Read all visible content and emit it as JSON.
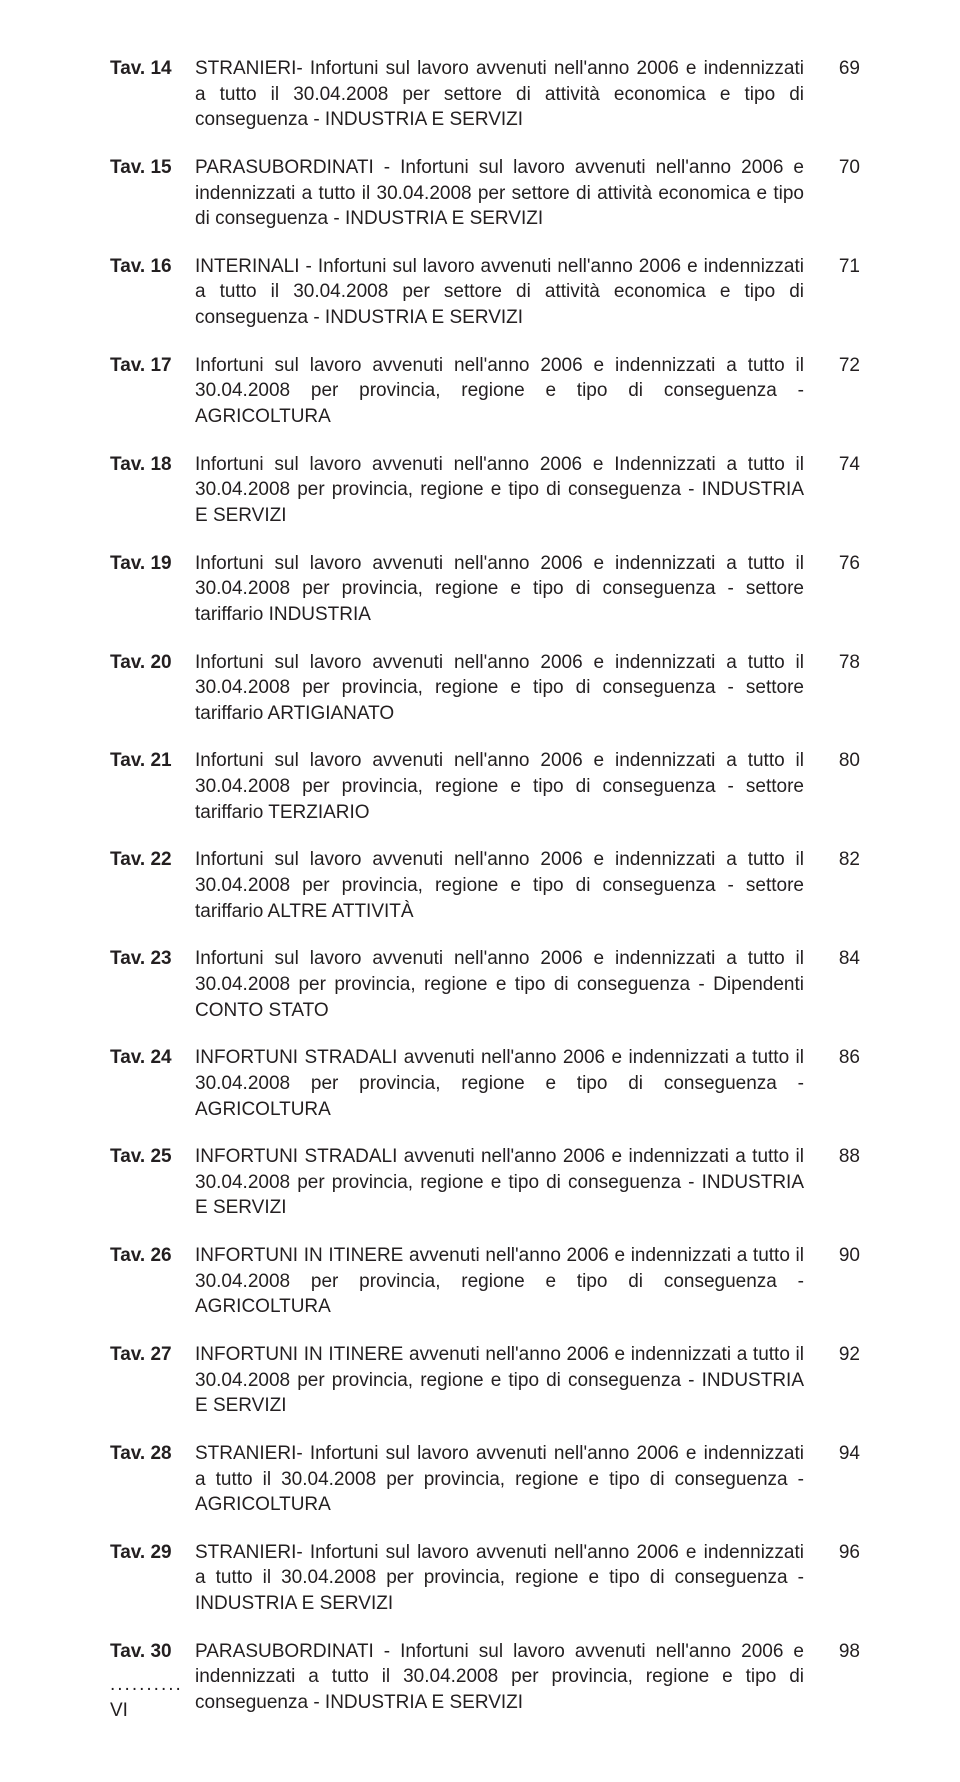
{
  "font": {
    "family": "Arial, Helvetica, sans-serif",
    "size_pt": 14,
    "color": "#231f20"
  },
  "background_color": "#ffffff",
  "entries": [
    {
      "label": "Tav. 14",
      "desc": "STRANIERI- Infortuni sul lavoro avvenuti nell'anno 2006 e indennizzati a tutto il 30.04.2008 per settore di attività economica e tipo di conseguenza - INDUSTRIA E SERVIZI",
      "page": "69"
    },
    {
      "label": "Tav. 15",
      "desc": "PARASUBORDINATI - Infortuni sul lavoro avvenuti nell'anno 2006 e indennizzati a tutto il 30.04.2008 per settore di attività economica e tipo di conseguenza - INDUSTRIA E SERVIZI",
      "page": "70"
    },
    {
      "label": "Tav. 16",
      "desc": "INTERINALI - Infortuni sul lavoro avvenuti nell'anno 2006 e indennizzati a tutto il 30.04.2008 per settore di attività economica e tipo di conseguenza - INDUSTRIA E SERVIZI",
      "page": "71"
    },
    {
      "label": "Tav. 17",
      "desc": "Infortuni sul lavoro avvenuti nell'anno 2006 e indennizzati a tutto il 30.04.2008 per provincia, regione e tipo di conseguenza - AGRICOLTURA",
      "page": "72"
    },
    {
      "label": "Tav. 18",
      "desc": "Infortuni sul lavoro avvenuti nell'anno 2006 e Indennizzati a tutto il 30.04.2008 per provincia, regione e tipo di conseguenza - INDUSTRIA E SERVIZI",
      "page": "74"
    },
    {
      "label": "Tav. 19",
      "desc": "Infortuni sul lavoro avvenuti nell'anno 2006 e indennizzati a tutto il 30.04.2008 per provincia, regione e tipo di conseguenza - settore tariffario INDUSTRIA",
      "page": "76"
    },
    {
      "label": "Tav. 20",
      "desc": "Infortuni sul lavoro avvenuti nell'anno 2006 e indennizzati a tutto il 30.04.2008 per provincia, regione e tipo di conseguenza - settore tariffario ARTIGIANATO",
      "page": "78"
    },
    {
      "label": "Tav. 21",
      "desc": "Infortuni sul lavoro avvenuti nell'anno 2006 e indennizzati a tutto il 30.04.2008 per provincia, regione e tipo di conseguenza - settore tariffario TERZIARIO",
      "page": "80"
    },
    {
      "label": "Tav. 22",
      "desc": "Infortuni sul lavoro avvenuti nell'anno 2006 e indennizzati a tutto il 30.04.2008 per provincia, regione e tipo di conseguenza - settore tariffario ALTRE ATTIVITÀ",
      "page": "82"
    },
    {
      "label": "Tav. 23",
      "desc": "Infortuni sul lavoro avvenuti nell'anno 2006 e indennizzati a tutto il 30.04.2008 per provincia, regione e tipo di conseguenza - Dipendenti CONTO STATO",
      "page": "84"
    },
    {
      "label": "Tav. 24",
      "desc": "INFORTUNI STRADALI avvenuti nell'anno 2006 e indennizzati a tutto il 30.04.2008 per provincia, regione e tipo di conseguenza - AGRICOLTURA",
      "page": "86"
    },
    {
      "label": "Tav. 25",
      "desc": "INFORTUNI STRADALI avvenuti nell'anno 2006 e indennizzati a tutto il 30.04.2008 per provincia, regione e tipo di conseguenza - INDUSTRIA E SERVIZI",
      "page": "88"
    },
    {
      "label": "Tav. 26",
      "desc": "INFORTUNI IN ITINERE avvenuti nell'anno 2006 e indennizzati a tutto il 30.04.2008 per provincia, regione e tipo di conseguenza - AGRICOLTURA",
      "page": "90"
    },
    {
      "label": "Tav. 27",
      "desc": "INFORTUNI IN ITINERE avvenuti nell'anno 2006 e indennizzati a tutto il 30.04.2008 per provincia, regione e tipo di conseguenza - INDUSTRIA E SERVIZI",
      "page": "92"
    },
    {
      "label": "Tav. 28",
      "desc": "STRANIERI- Infortuni sul lavoro avvenuti nell'anno 2006 e indennizzati a tutto il 30.04.2008 per provincia, regione e tipo di conseguenza - AGRICOLTURA",
      "page": "94"
    },
    {
      "label": "Tav. 29",
      "desc": "STRANIERI- Infortuni sul lavoro avvenuti nell'anno 2006 e indennizzati a tutto il 30.04.2008 per provincia, regione e tipo di conseguenza - INDUSTRIA E SERVIZI",
      "page": "96"
    },
    {
      "label": "Tav. 30",
      "desc": "PARASUBORDINATI - Infortuni sul lavoro avvenuti nell'anno 2006 e indennizzati a tutto il 30.04.2008 per provincia, regione e tipo di conseguenza - INDUSTRIA E SERVIZI",
      "page": "98"
    }
  ],
  "footer": {
    "dots": "..........",
    "page_number": "VI"
  }
}
